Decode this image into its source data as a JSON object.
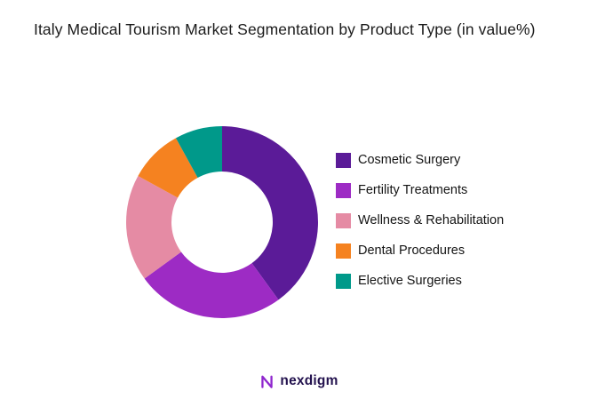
{
  "header": {
    "title": "Italy Medical Tourism Market Segmentation by Product Type (in value%)"
  },
  "chart_data": {
    "type": "pie",
    "subtype": "donut",
    "title": "Italy Medical Tourism Market Segmentation by Product Type (in value%)",
    "unit": "value%",
    "labels": [
      "Cosmetic Surgery",
      "Fertility Treatments",
      "Wellness & Rehabilitation",
      "Dental Procedures",
      "Elective Surgeries"
    ],
    "values": [
      40,
      25,
      18,
      9,
      8
    ],
    "colors": [
      "#5B1B98",
      "#9D2BC4",
      "#E58BA4",
      "#F58220",
      "#00998A"
    ],
    "legend_position": "right",
    "start_angle_deg": -90,
    "direction": "clockwise",
    "donut_hole_ratio": 0.53,
    "background": "#ffffff"
  },
  "footer": {
    "logo_text": "nexdigm",
    "logo_icon": "nexdigm-n-wave",
    "logo_icon_color": "#8F27CE",
    "logo_text_color": "#23124E"
  }
}
